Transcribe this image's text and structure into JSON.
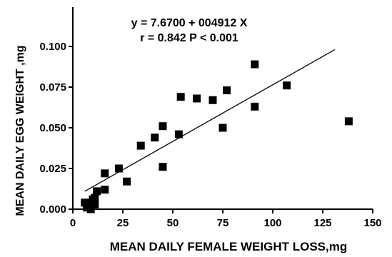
{
  "chart_data": {
    "type": "scatter",
    "title": "",
    "xlabel": "MEAN DAILY FEMALE WEIGHT LOSS,mg",
    "ylabel": "MEAN DAILY EGG WEIGHT ,mg",
    "xlim": [
      0,
      150
    ],
    "ylim": [
      0,
      0.125
    ],
    "xticks": [
      "0",
      "25",
      "50",
      "75",
      "100",
      "125",
      "150"
    ],
    "yticks": [
      "0.000",
      "0.025",
      "0.050",
      "0.075",
      "0.100"
    ],
    "grid": false,
    "legend": "none",
    "annotations": [
      "y = 7.6700 + 004912 X",
      "r = 0.842 P < 0.001"
    ],
    "marker": "square",
    "marker_color": "#000000",
    "points": [
      [
        6,
        0.004
      ],
      [
        7,
        0.001
      ],
      [
        8,
        0.002
      ],
      [
        8,
        0.004
      ],
      [
        9,
        0.0
      ],
      [
        9,
        0.003
      ],
      [
        10,
        0.005
      ],
      [
        10,
        0.006
      ],
      [
        11,
        0.003
      ],
      [
        11,
        0.007
      ],
      [
        12,
        0.011
      ],
      [
        16,
        0.012
      ],
      [
        16,
        0.022
      ],
      [
        23,
        0.025
      ],
      [
        27,
        0.017
      ],
      [
        34,
        0.039
      ],
      [
        41,
        0.044
      ],
      [
        45,
        0.026
      ],
      [
        45,
        0.051
      ],
      [
        53,
        0.046
      ],
      [
        54,
        0.069
      ],
      [
        62,
        0.068
      ],
      [
        70,
        0.067
      ],
      [
        75,
        0.05
      ],
      [
        77,
        0.073
      ],
      [
        91,
        0.089
      ],
      [
        91,
        0.063
      ],
      [
        107,
        0.076
      ],
      [
        138,
        0.054
      ]
    ],
    "trendline": {
      "x": [
        6,
        131
      ],
      "y": [
        0.011,
        0.098
      ]
    }
  }
}
